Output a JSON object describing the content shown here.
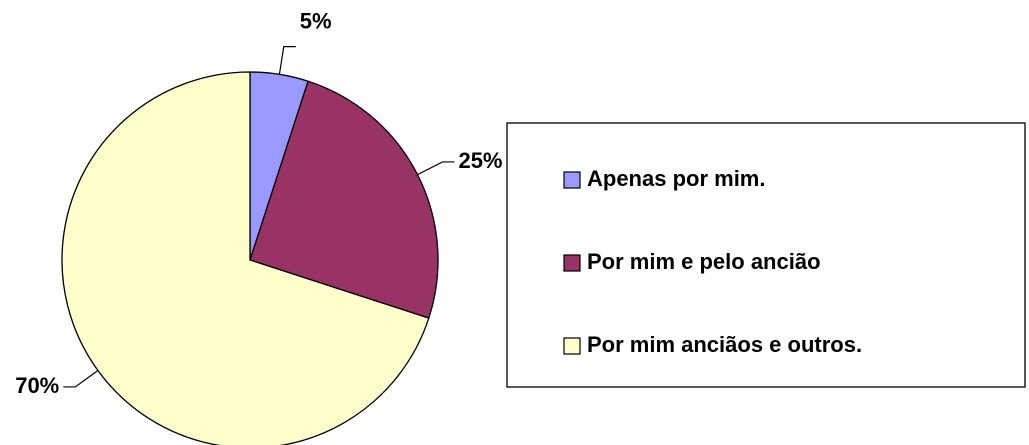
{
  "chart_data": {
    "type": "pie",
    "categories": [
      "Apenas por mim.",
      "Por mim e pelo ancião",
      "Por mim anciãos e outros."
    ],
    "values": [
      5,
      25,
      70
    ],
    "value_labels": [
      "5%",
      "25%",
      "70%"
    ],
    "colors": [
      "#9999ff",
      "#993366",
      "#ffffcc"
    ],
    "legend": "right"
  }
}
